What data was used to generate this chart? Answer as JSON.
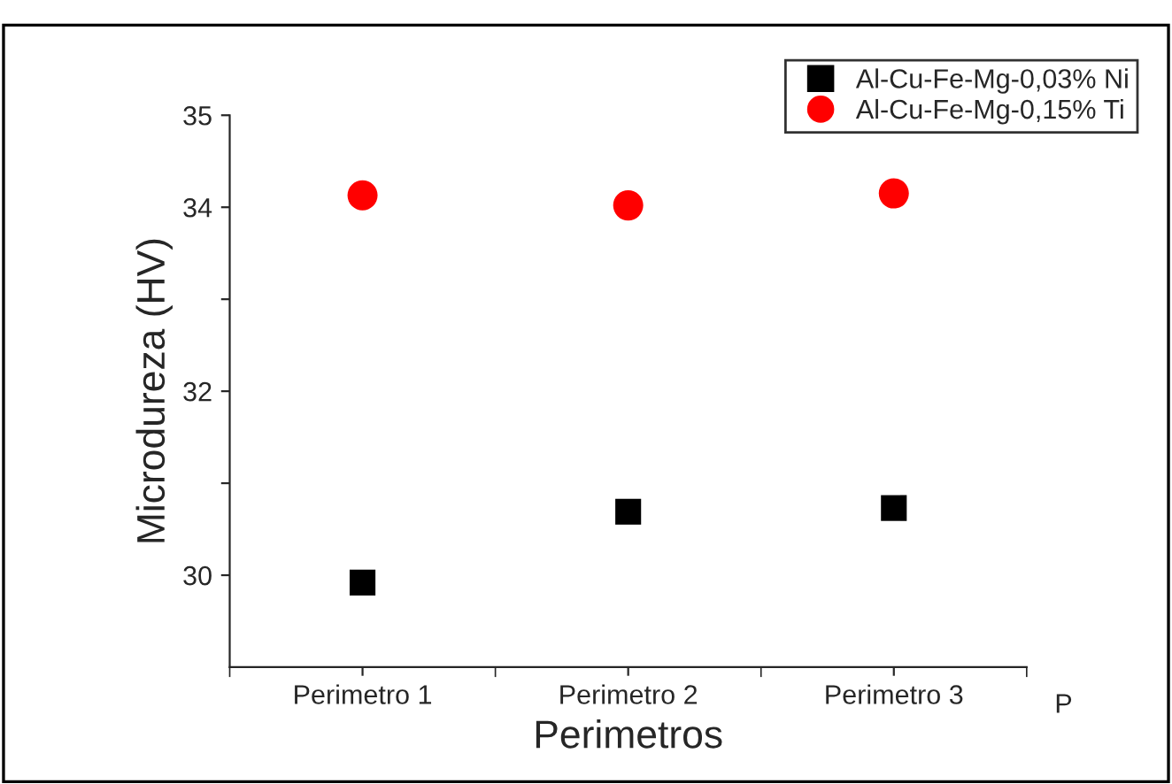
{
  "chart_data": {
    "type": "scatter",
    "xlabel": "Perimetros",
    "ylabel": "Microdureza (HV)",
    "categories": [
      "Perimetro 1",
      "Perimetro 2",
      "Perimetro 3"
    ],
    "series": [
      {
        "name": "Al-Cu-Fe-Mg-0,03% Ni",
        "color": "#000000",
        "marker": "square",
        "values": [
          29.92,
          30.69,
          30.73
        ]
      },
      {
        "name": "Al-Cu-Fe-Mg-0,15% Ti",
        "color": "#ff0000",
        "marker": "circle",
        "values": [
          34.13,
          34.02,
          34.15
        ]
      }
    ],
    "ylim": [
      29,
      35
    ],
    "yticks": [
      30,
      {
        "value": 31,
        "label": null
      },
      32,
      {
        "value": 33,
        "label": null
      },
      34,
      35
    ],
    "annotations": [
      "P"
    ],
    "legend": "top right",
    "grid": false
  }
}
